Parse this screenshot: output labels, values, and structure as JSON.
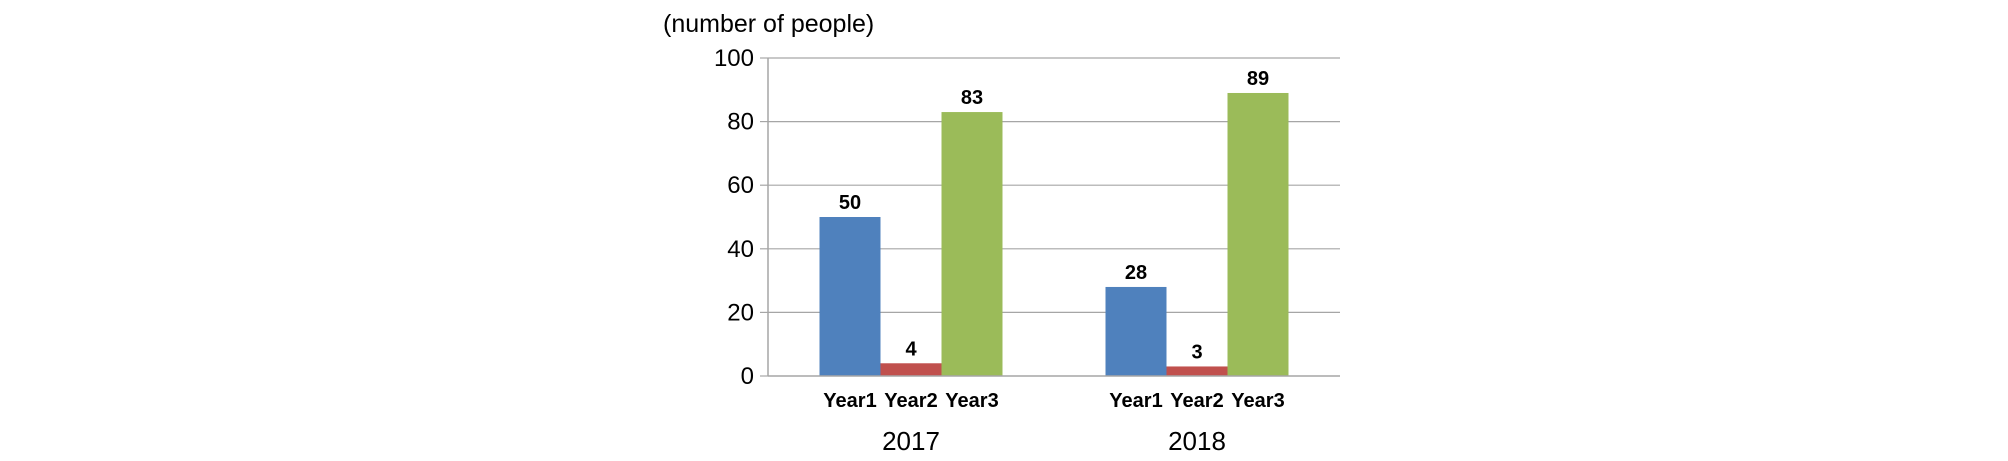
{
  "chart_data": {
    "type": "bar",
    "ylabel": "(number of people)",
    "ylim": [
      0,
      100
    ],
    "yticks": [
      0,
      20,
      40,
      60,
      80,
      100
    ],
    "grid": true,
    "groups": [
      "2017",
      "2018"
    ],
    "categories": [
      "Year1",
      "Year2",
      "Year3"
    ],
    "colors": [
      "#4F81BD",
      "#C0504D",
      "#9BBB59"
    ],
    "values": [
      [
        50,
        4,
        83
      ],
      [
        28,
        3,
        89
      ]
    ]
  }
}
